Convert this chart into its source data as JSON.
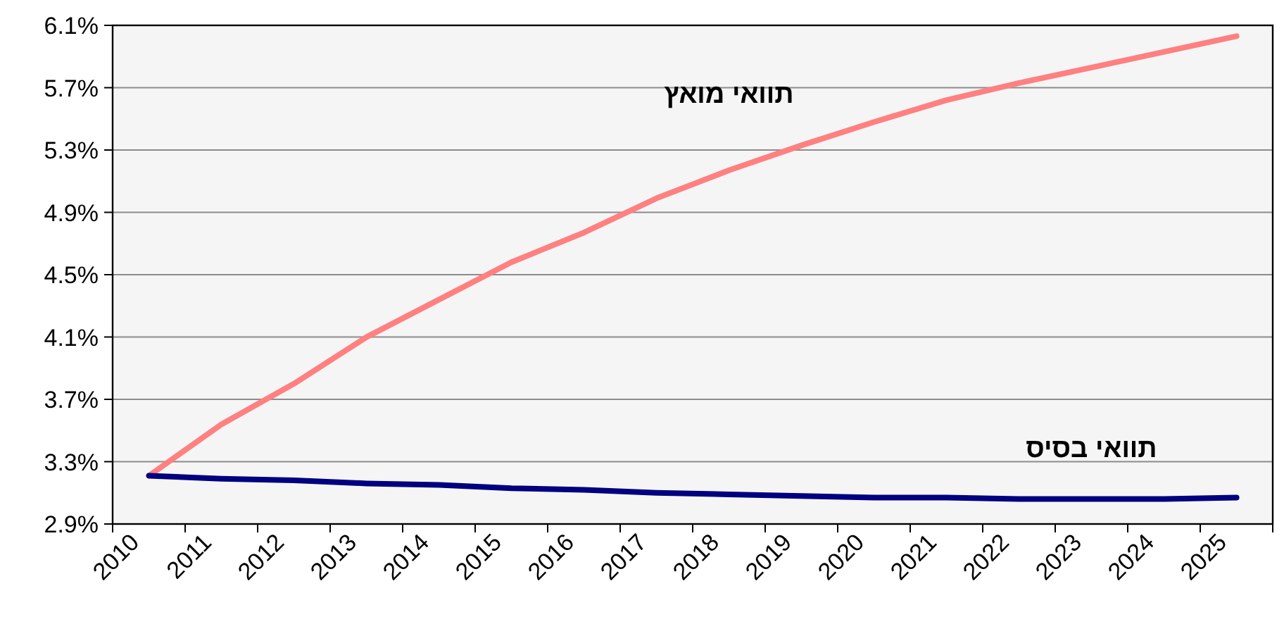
{
  "chart_data": {
    "type": "line",
    "categories": [
      "2010",
      "2011",
      "2012",
      "2013",
      "2014",
      "2015",
      "2016",
      "2017",
      "2018",
      "2019",
      "2020",
      "2021",
      "2022",
      "2023",
      "2024",
      "2025"
    ],
    "series": [
      {
        "name": "תוואי מואץ",
        "color": "#ff8080",
        "values": [
          3.21,
          3.54,
          3.8,
          4.1,
          4.34,
          4.58,
          4.77,
          4.99,
          5.17,
          5.33,
          5.48,
          5.62,
          5.73,
          5.83,
          5.93,
          6.03
        ]
      },
      {
        "name": "תוואי בסיס",
        "color": "#000080",
        "values": [
          3.21,
          3.19,
          3.18,
          3.16,
          3.15,
          3.13,
          3.12,
          3.1,
          3.09,
          3.08,
          3.07,
          3.07,
          3.06,
          3.06,
          3.06,
          3.07
        ]
      }
    ],
    "ylim": [
      2.9,
      6.1
    ],
    "yticks": [
      {
        "value": 2.9,
        "label": "2.9%"
      },
      {
        "value": 3.3,
        "label": "3.3%"
      },
      {
        "value": 3.7,
        "label": "3.7%"
      },
      {
        "value": 4.1,
        "label": "4.1%"
      },
      {
        "value": 4.5,
        "label": "4.5%"
      },
      {
        "value": 4.9,
        "label": "4.9%"
      },
      {
        "value": 5.3,
        "label": "5.3%"
      },
      {
        "value": 5.7,
        "label": "5.7%"
      },
      {
        "value": 6.1,
        "label": "6.1%"
      }
    ],
    "grid": "y",
    "legend": false,
    "marker": "none",
    "line_style": "solid"
  }
}
